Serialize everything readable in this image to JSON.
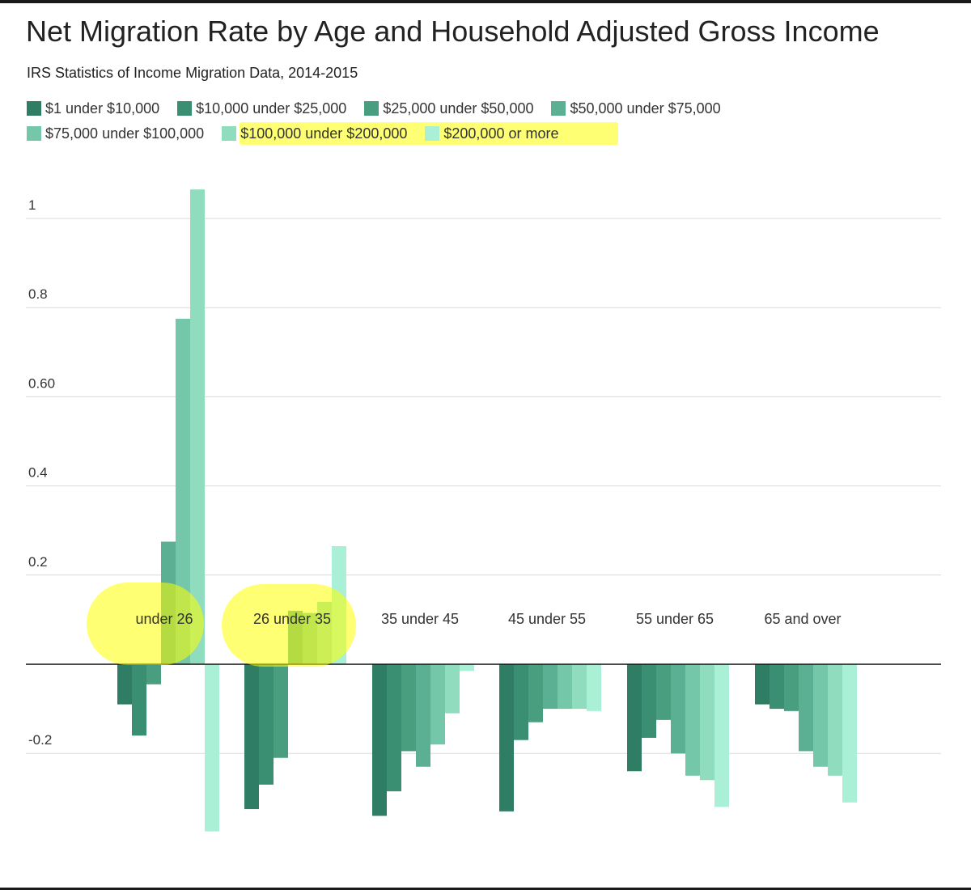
{
  "chart_data": {
    "type": "bar",
    "title": "Net Migration Rate by Age and Household Adjusted Gross Income",
    "subtitle": "IRS Statistics of Income Migration Data, 2014-2015",
    "xlabel": "",
    "ylabel": "",
    "ylim": [
      -0.35,
      1.1
    ],
    "y_ticks": [
      {
        "value": 1,
        "label": "1"
      },
      {
        "value": 0.8,
        "label": "0.8"
      },
      {
        "value": 0.6,
        "label": "0.60"
      },
      {
        "value": 0.4,
        "label": "0.4"
      },
      {
        "value": 0.2,
        "label": "0.2"
      },
      {
        "value": -0.2,
        "label": "-0.2"
      }
    ],
    "categories": [
      "under 26",
      "26 under 35",
      "35 under 45",
      "45 under 55",
      "55 under 65",
      "65 and over"
    ],
    "series": [
      {
        "name": "$1 under $10,000",
        "color": "#2e7d64",
        "values": [
          -0.09,
          -0.325,
          -0.34,
          -0.33,
          -0.24,
          -0.09
        ]
      },
      {
        "name": "$10,000 under $25,000",
        "color": "#3a8e72",
        "values": [
          -0.16,
          -0.27,
          -0.285,
          -0.17,
          -0.165,
          -0.1
        ]
      },
      {
        "name": "$25,000 under $50,000",
        "color": "#4a9e80",
        "values": [
          -0.045,
          -0.21,
          -0.195,
          -0.13,
          -0.125,
          -0.105
        ]
      },
      {
        "name": "$50,000 under $75,000",
        "color": "#5bb093",
        "values": [
          0.275,
          0.12,
          -0.23,
          -0.1,
          -0.2,
          -0.195
        ]
      },
      {
        "name": "$75,000 under $100,000",
        "color": "#74c7a8",
        "values": [
          0.775,
          0.115,
          -0.18,
          -0.1,
          -0.25,
          -0.23
        ]
      },
      {
        "name": "$100,000 under $200,000",
        "color": "#8fdcbf",
        "values": [
          1.065,
          0.14,
          -0.11,
          -0.1,
          -0.26,
          -0.25
        ]
      },
      {
        "name": "$200,000 or more",
        "color": "#a9f0d6",
        "values": [
          -0.375,
          0.265,
          -0.015,
          -0.105,
          -0.32,
          -0.31
        ]
      }
    ],
    "grid": true,
    "legend": "top-left",
    "annotations": [
      {
        "type": "highlight",
        "target": "legend",
        "items": [
          "$100,000 under $200,000",
          "$200,000 or more"
        ],
        "color": "#ffff00"
      },
      {
        "type": "highlight",
        "target": "category",
        "item": "under 26",
        "color": "#ffff00"
      },
      {
        "type": "highlight",
        "target": "category",
        "item": "26 under 35",
        "color": "#ffff00"
      }
    ]
  }
}
